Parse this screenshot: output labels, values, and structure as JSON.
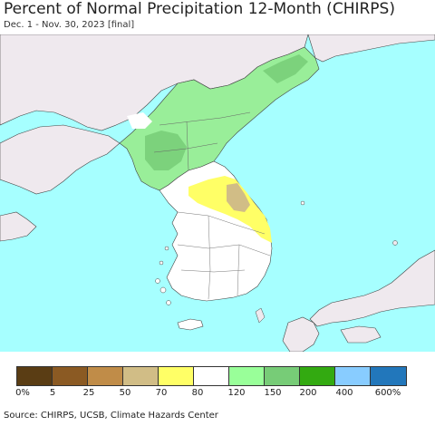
{
  "header": {
    "title": "Percent of Normal Precipitation 12-Month (CHIRPS)",
    "subtitle": "Dec. 1 - Nov. 30, 2023 [final]"
  },
  "legend": {
    "colors": [
      "#5a3d14",
      "#8b5a23",
      "#c08c48",
      "#d1bd86",
      "#ffff66",
      "#ffffff",
      "#99ff99",
      "#77cc77",
      "#33aa11",
      "#88ccff",
      "#2277bb"
    ],
    "tick_labels": [
      "0%",
      "5",
      "25",
      "50",
      "70",
      "80",
      "120",
      "150",
      "200",
      "400",
      "600%"
    ]
  },
  "map_colors": {
    "sea": "#a6ffff",
    "land": "#efe9ee",
    "green_light": "#99ee99",
    "green_mid": "#77cc77",
    "yellow": "#ffff66",
    "tan": "#d1bd86",
    "white": "#ffffff"
  },
  "footer": {
    "source": "Source: CHIRPS, UCSB, Climate Hazards Center"
  }
}
